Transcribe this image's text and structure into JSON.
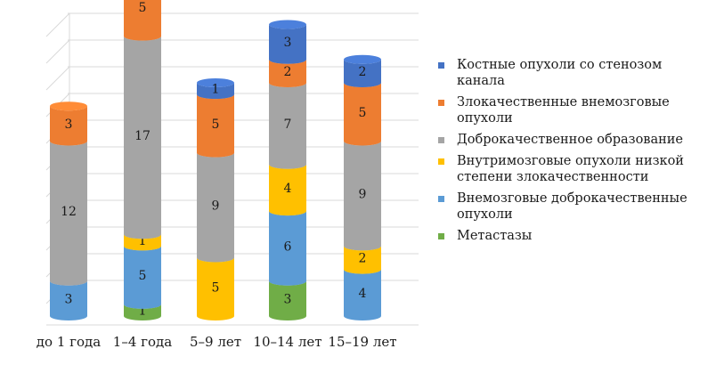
{
  "chart_data": {
    "type": "bar",
    "stacked": true,
    "orientation": "vertical",
    "style": "3d-cylinder",
    "grid": true,
    "legend_position": "right",
    "title": "",
    "xlabel": "",
    "ylabel": "",
    "categories": [
      "до 1 года",
      "1–4 года",
      "5–9 лет",
      "10–14 лет",
      "15–19 лет"
    ],
    "series": [
      {
        "name": "Метастазы",
        "color": "#70AD47",
        "values": [
          0,
          1,
          0,
          3,
          0
        ]
      },
      {
        "name": "Внемозговые доброкачественные опухоли",
        "color": "#5B9BD5",
        "values": [
          3,
          5,
          0,
          6,
          4
        ]
      },
      {
        "name": "Внутримозговые опухоли низкой степени злокачественности",
        "color": "#FFC000",
        "values": [
          0,
          1,
          5,
          4,
          2
        ]
      },
      {
        "name": "Доброкачественное образование",
        "color": "#A5A5A5",
        "values": [
          12,
          17,
          9,
          7,
          9
        ]
      },
      {
        "name": "Злокачественные внемозговые опухоли",
        "color": "#ED7D31",
        "values": [
          3,
          5,
          5,
          2,
          5
        ]
      },
      {
        "name": "Костные опухоли со стенозом канала",
        "color": "#4472C4",
        "values": [
          0,
          0,
          1,
          3,
          2
        ]
      }
    ],
    "legend_order": [
      5,
      4,
      3,
      2,
      1,
      0
    ]
  }
}
